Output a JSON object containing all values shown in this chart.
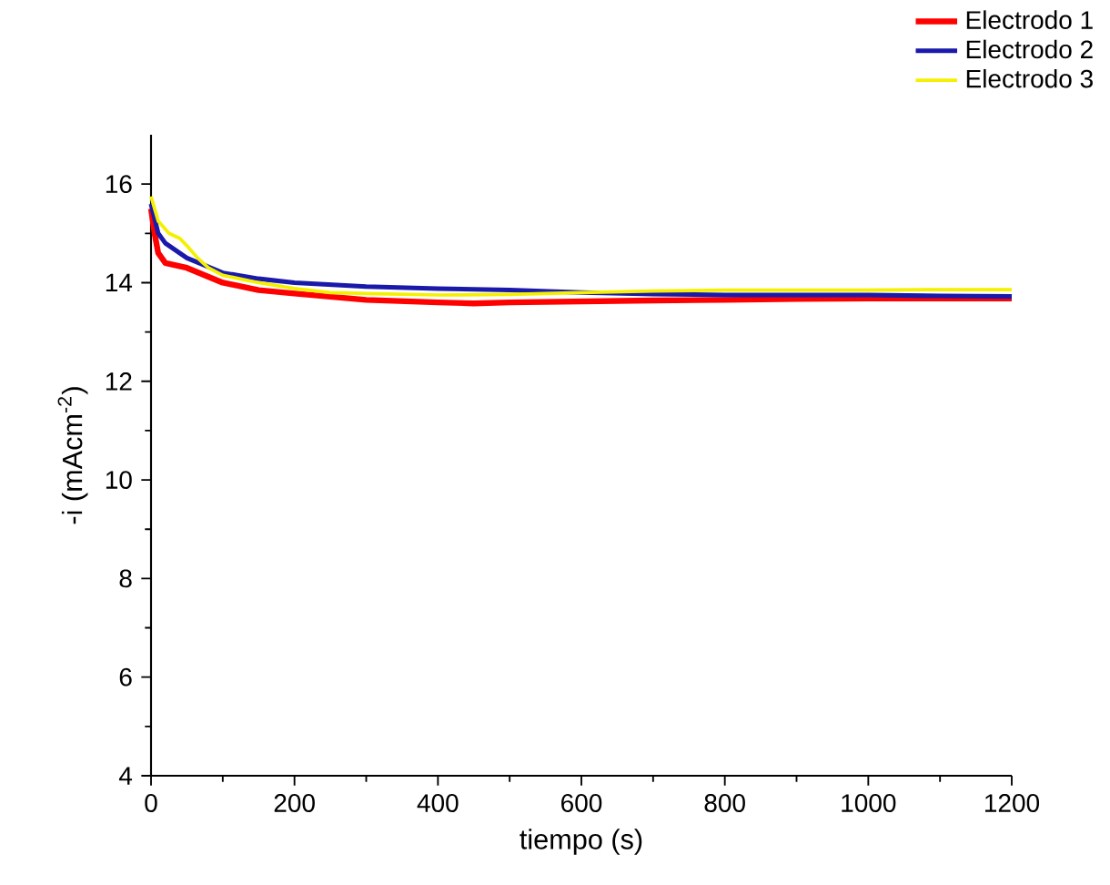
{
  "chart_data": {
    "type": "line",
    "xlabel": "tiempo (s)",
    "ylabel": "-i (mAcm$^{-2}$)",
    "xlim": [
      0,
      1200
    ],
    "ylim": [
      4,
      17
    ],
    "xticks": [
      0,
      200,
      400,
      600,
      800,
      1000,
      1200
    ],
    "yticks": [
      4,
      6,
      8,
      10,
      12,
      14,
      16
    ],
    "legend": "top right",
    "series": [
      {
        "name": "Electrodo 1",
        "color": "#ff0000",
        "x": [
          0,
          5,
          10,
          20,
          35,
          50,
          75,
          100,
          150,
          200,
          300,
          400,
          450,
          500,
          600,
          700,
          800,
          900,
          1000,
          1100,
          1200
        ],
        "values": [
          15.5,
          15.0,
          14.6,
          14.4,
          14.35,
          14.3,
          14.15,
          14.0,
          13.85,
          13.78,
          13.65,
          13.6,
          13.58,
          13.6,
          13.62,
          13.64,
          13.65,
          13.67,
          13.68,
          13.68,
          13.68
        ]
      },
      {
        "name": "Electrodo 2",
        "color": "#1a1aaa",
        "x": [
          0,
          5,
          10,
          20,
          35,
          50,
          75,
          100,
          150,
          200,
          300,
          400,
          500,
          600,
          700,
          800,
          900,
          1000,
          1100,
          1200
        ],
        "values": [
          15.6,
          15.3,
          15.0,
          14.8,
          14.65,
          14.5,
          14.35,
          14.2,
          14.08,
          14.0,
          13.92,
          13.88,
          13.85,
          13.8,
          13.77,
          13.75,
          13.75,
          13.75,
          13.73,
          13.72
        ]
      },
      {
        "name": "Electrodo 3",
        "color": "#f5f000",
        "x": [
          0,
          5,
          10,
          25,
          40,
          50,
          65,
          80,
          100,
          150,
          200,
          250,
          300,
          400,
          500,
          600,
          700,
          800,
          900,
          1000,
          1100,
          1200
        ],
        "values": [
          15.75,
          15.5,
          15.25,
          15.0,
          14.9,
          14.75,
          14.5,
          14.3,
          14.15,
          14.0,
          13.88,
          13.8,
          13.78,
          13.75,
          13.76,
          13.8,
          13.83,
          13.85,
          13.85,
          13.85,
          13.86,
          13.86
        ]
      }
    ]
  }
}
